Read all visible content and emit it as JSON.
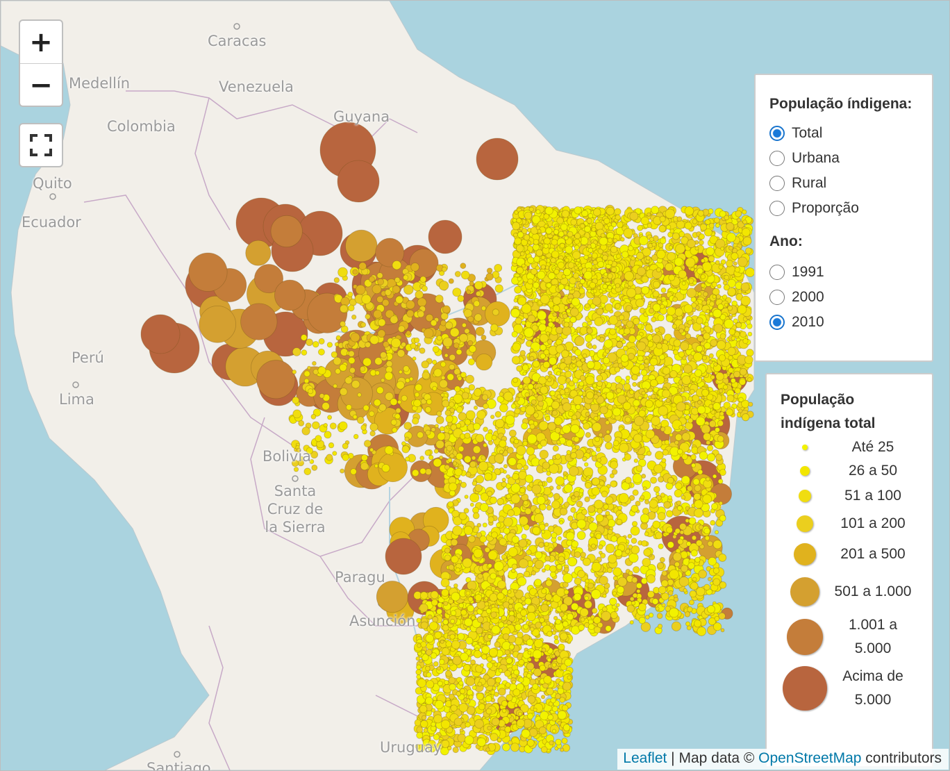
{
  "map": {
    "places": [
      {
        "name": "Caracas"
      },
      {
        "name": "Medellín"
      },
      {
        "name": "Venezuela"
      },
      {
        "name": "Guyana"
      },
      {
        "name": "Colombia"
      },
      {
        "name": "Quito"
      },
      {
        "name": "Ecuador"
      },
      {
        "name": "Perú"
      },
      {
        "name": "Lima"
      },
      {
        "name": "Bolivia"
      },
      {
        "name": "Santa Cruz de la Sierra"
      },
      {
        "name": "Paragu"
      },
      {
        "name": "Asunción"
      },
      {
        "name": "Uruguay"
      },
      {
        "name": "Santiago"
      }
    ],
    "colors": {
      "water": "#aad3df",
      "land": "#f2efe9",
      "border": "#c7a9c7",
      "class1": "#f2f200",
      "class2": "#f2e600",
      "class3": "#f0dd10",
      "class4": "#ebcf1e",
      "class5": "#e0b21e",
      "class6": "#d4a030",
      "class7": "#c47d3a",
      "class8": "#b8653e"
    }
  },
  "controls": {
    "zoom_in": "+",
    "zoom_out": "−",
    "fullscreen_icon": "fullscreen-icon"
  },
  "layers": {
    "population_header": "População índigena:",
    "population_options": [
      {
        "label": "Total",
        "checked": true
      },
      {
        "label": "Urbana",
        "checked": false
      },
      {
        "label": "Rural",
        "checked": false
      },
      {
        "label": "Proporção",
        "checked": false
      }
    ],
    "year_header": "Ano:",
    "year_options": [
      {
        "label": "1991",
        "checked": false
      },
      {
        "label": "2000",
        "checked": false
      },
      {
        "label": "2010",
        "checked": true
      }
    ]
  },
  "legend": {
    "title_line1": "População",
    "title_line2": "indígena total",
    "classes": [
      {
        "line1": "Até 25",
        "line2": ""
      },
      {
        "line1": "26 a 50",
        "line2": ""
      },
      {
        "line1": "51 a 100",
        "line2": ""
      },
      {
        "line1": "101 a 200",
        "line2": ""
      },
      {
        "line1": "201 a 500",
        "line2": ""
      },
      {
        "line1": "501 a 1.000",
        "line2": ""
      },
      {
        "line1": "1.001 a",
        "line2": "5.000"
      },
      {
        "line1": "Acima de",
        "line2": "5.000"
      }
    ]
  },
  "attribution": {
    "leaflet": "Leaflet",
    "sep": " | Map data © ",
    "osm": "OpenStreetMap",
    "contributors": " contributors"
  }
}
